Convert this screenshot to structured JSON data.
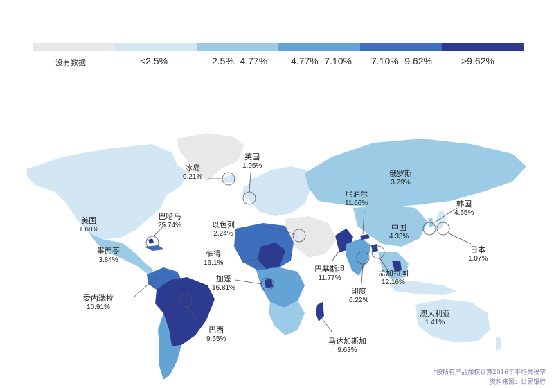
{
  "legend": {
    "items": [
      {
        "label": "没有数据",
        "color": "#e8e8e8"
      },
      {
        "label": "<2.5%",
        "color": "#d3e6f4"
      },
      {
        "label": "2.5% -4.77%",
        "color": "#9ccbe6"
      },
      {
        "label": "4.77% -7.10%",
        "color": "#63a3d6"
      },
      {
        "label": "7.10% -9.62%",
        "color": "#3e6fbd"
      },
      {
        "label": ">9.62%",
        "color": "#2c3a90"
      }
    ]
  },
  "countries": [
    {
      "name": "冰岛",
      "value": "0.21%"
    },
    {
      "name": "英国",
      "value": "1.95%"
    },
    {
      "name": "俄罗斯",
      "value": "3.29%"
    },
    {
      "name": "美国",
      "value": "1.68%"
    },
    {
      "name": "巴哈马",
      "value": "25.74%"
    },
    {
      "name": "以色列",
      "value": "2.24%"
    },
    {
      "name": "尼泊尔",
      "value": "11.66%"
    },
    {
      "name": "韩国",
      "value": "4.65%"
    },
    {
      "name": "中国",
      "value": "4.33%"
    },
    {
      "name": "墨西哥",
      "value": "3.84%"
    },
    {
      "name": "乍得",
      "value": "16.1%"
    },
    {
      "name": "日本",
      "value": "1.07%"
    },
    {
      "name": "巴基斯坦",
      "value": "11.77%"
    },
    {
      "name": "孟加拉国",
      "value": "12.16%"
    },
    {
      "name": "加蓬",
      "value": "16.81%"
    },
    {
      "name": "委内瑞拉",
      "value": "10.91%"
    },
    {
      "name": "印度",
      "value": "6.22%"
    },
    {
      "name": "澳大利亚",
      "value": "1.41%"
    },
    {
      "name": "巴西",
      "value": "9.65%"
    },
    {
      "name": "马达加斯加",
      "value": "9.63%"
    }
  ],
  "footnote": {
    "line1": "*按所有产品加权计算2016年平均关税率",
    "line2": "资料来源：世界银行"
  }
}
